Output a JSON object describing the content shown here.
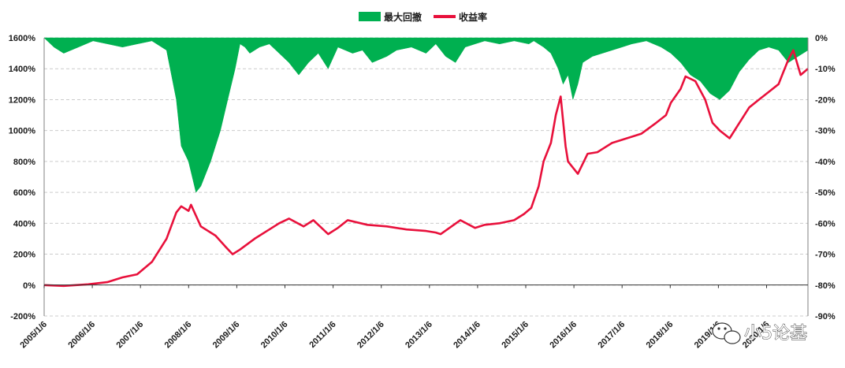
{
  "chart_data": {
    "type": "line+area",
    "title": "",
    "legend": {
      "placement": "top-center",
      "entries": [
        {
          "name": "最大回撤",
          "kind": "area",
          "color": "#00b050"
        },
        {
          "name": "收益率",
          "kind": "line",
          "color": "#e8103b"
        }
      ]
    },
    "x_tick_labels": [
      "2005/1/6",
      "2006/1/6",
      "2007/1/6",
      "2008/1/6",
      "2009/1/6",
      "2010/1/6",
      "2011/1/6",
      "2012/1/6",
      "2013/1/6",
      "2014/1/6",
      "2015/1/6",
      "2016/1/6",
      "2017/1/6",
      "2018/1/6",
      "2019/1/6",
      "2020/1/6"
    ],
    "x_range": [
      2005.0,
      2020.6
    ],
    "y_left": {
      "ticks": [
        "-200%",
        "0%",
        "200%",
        "400%",
        "600%",
        "800%",
        "1000%",
        "1200%",
        "1400%",
        "1600%"
      ],
      "range": [
        -200,
        1600
      ],
      "unit": "%"
    },
    "y_right": {
      "ticks": [
        "-90%",
        "-80%",
        "-70%",
        "-60%",
        "-50%",
        "-40%",
        "-30%",
        "-20%",
        "-10%",
        "0%"
      ],
      "range": [
        -90,
        0
      ],
      "unit": "%"
    },
    "grid": "horizontal dashed",
    "series": [
      {
        "name": "收益率",
        "axis": "left",
        "color": "#e8103b",
        "x": [
          2005.0,
          2005.4,
          2005.9,
          2006.3,
          2006.6,
          2006.9,
          2007.2,
          2007.5,
          2007.7,
          2007.8,
          2007.95,
          2008.0,
          2008.2,
          2008.5,
          2008.7,
          2008.85,
          2009.0,
          2009.3,
          2009.6,
          2009.8,
          2010.0,
          2010.3,
          2010.5,
          2010.8,
          2011.0,
          2011.2,
          2011.6,
          2012.0,
          2012.4,
          2012.8,
          2013.0,
          2013.1,
          2013.5,
          2013.8,
          2014.0,
          2014.3,
          2014.6,
          2014.8,
          2014.95,
          2015.1,
          2015.2,
          2015.35,
          2015.45,
          2015.55,
          2015.65,
          2015.7,
          2015.9,
          2016.1,
          2016.3,
          2016.6,
          2016.9,
          2017.2,
          2017.5,
          2017.7,
          2017.8,
          2018.0,
          2018.1,
          2018.3,
          2018.5,
          2018.65,
          2018.8,
          2019.0,
          2019.2,
          2019.4,
          2019.6,
          2019.8,
          2020.0,
          2020.1,
          2020.2,
          2020.3,
          2020.45,
          2020.6
        ],
        "values": [
          0,
          -5,
          5,
          20,
          50,
          70,
          150,
          300,
          470,
          510,
          480,
          520,
          380,
          320,
          250,
          200,
          230,
          300,
          360,
          400,
          430,
          380,
          420,
          330,
          370,
          420,
          390,
          380,
          360,
          350,
          340,
          330,
          420,
          370,
          390,
          400,
          420,
          460,
          500,
          640,
          800,
          920,
          1100,
          1220,
          900,
          800,
          720,
          850,
          860,
          920,
          950,
          980,
          1050,
          1100,
          1180,
          1270,
          1350,
          1320,
          1200,
          1050,
          1000,
          950,
          1050,
          1150,
          1200,
          1250,
          1300,
          1380,
          1460,
          1520,
          1360,
          1400
        ]
      },
      {
        "name": "最大回撤",
        "axis": "right",
        "color": "#00b050",
        "x": [
          2005.0,
          2005.2,
          2005.4,
          2005.7,
          2006.0,
          2006.3,
          2006.6,
          2006.9,
          2007.2,
          2007.5,
          2007.7,
          2007.8,
          2007.95,
          2008.1,
          2008.2,
          2008.4,
          2008.6,
          2008.75,
          2008.9,
          2009.0,
          2009.1,
          2009.2,
          2009.4,
          2009.6,
          2009.8,
          2010.0,
          2010.2,
          2010.4,
          2010.6,
          2010.8,
          2011.0,
          2011.3,
          2011.5,
          2011.7,
          2012.0,
          2012.2,
          2012.5,
          2012.8,
          2013.0,
          2013.2,
          2013.4,
          2013.6,
          2013.8,
          2014.0,
          2014.3,
          2014.6,
          2014.9,
          2015.0,
          2015.2,
          2015.35,
          2015.5,
          2015.6,
          2015.7,
          2015.8,
          2015.9,
          2016.0,
          2016.2,
          2016.4,
          2016.6,
          2016.8,
          2017.0,
          2017.3,
          2017.6,
          2017.8,
          2018.0,
          2018.2,
          2018.4,
          2018.6,
          2018.8,
          2019.0,
          2019.2,
          2019.4,
          2019.6,
          2019.8,
          2020.0,
          2020.2,
          2020.4,
          2020.6
        ],
        "values": [
          0,
          -3,
          -5,
          -3,
          -1,
          -2,
          -3,
          -2,
          -1,
          -4,
          -20,
          -35,
          -40,
          -50,
          -48,
          -40,
          -30,
          -20,
          -10,
          -2,
          -3,
          -5,
          -3,
          -2,
          -5,
          -8,
          -12,
          -8,
          -5,
          -10,
          -3,
          -5,
          -4,
          -8,
          -6,
          -4,
          -3,
          -5,
          -2,
          -6,
          -8,
          -3,
          -2,
          -1,
          -2,
          -1,
          -2,
          -1,
          -3,
          -5,
          -10,
          -15,
          -12,
          -20,
          -15,
          -8,
          -6,
          -5,
          -4,
          -3,
          -2,
          -1,
          -3,
          -5,
          -8,
          -12,
          -14,
          -18,
          -20,
          -17,
          -11,
          -7,
          -4,
          -3,
          -4,
          -8,
          -6,
          -4
        ]
      }
    ],
    "watermark": "小5论基"
  }
}
